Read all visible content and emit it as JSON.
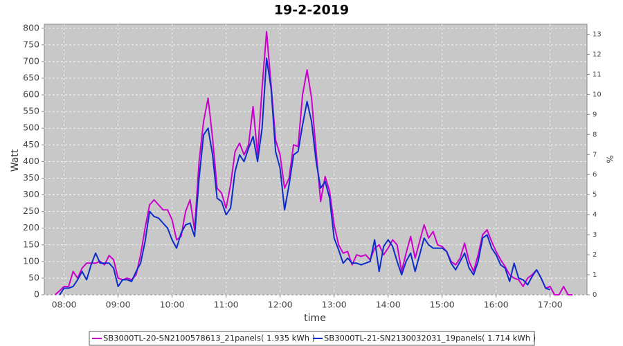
{
  "chart_data": {
    "type": "line",
    "title": "19-2-2019",
    "x_label": "time",
    "y_label": "Watt",
    "y2_label": "%",
    "x": [
      "07:50",
      "07:55",
      "08:00",
      "08:05",
      "08:10",
      "08:15",
      "08:20",
      "08:25",
      "08:30",
      "08:35",
      "08:40",
      "08:45",
      "08:50",
      "08:55",
      "09:00",
      "09:05",
      "09:10",
      "09:15",
      "09:20",
      "09:25",
      "09:30",
      "09:35",
      "09:40",
      "09:45",
      "09:50",
      "09:55",
      "10:00",
      "10:05",
      "10:10",
      "10:15",
      "10:20",
      "10:25",
      "10:30",
      "10:35",
      "10:40",
      "10:45",
      "10:50",
      "10:55",
      "11:00",
      "11:05",
      "11:10",
      "11:15",
      "11:20",
      "11:25",
      "11:30",
      "11:35",
      "11:40",
      "11:45",
      "11:50",
      "11:55",
      "12:00",
      "12:05",
      "12:10",
      "12:15",
      "12:20",
      "12:25",
      "12:30",
      "12:35",
      "12:40",
      "12:45",
      "12:50",
      "12:55",
      "13:00",
      "13:05",
      "13:10",
      "13:15",
      "13:20",
      "13:25",
      "13:30",
      "13:35",
      "13:40",
      "13:45",
      "13:50",
      "13:55",
      "14:00",
      "14:05",
      "14:10",
      "14:15",
      "14:20",
      "14:25",
      "14:30",
      "14:35",
      "14:40",
      "14:45",
      "14:50",
      "14:55",
      "15:00",
      "15:05",
      "15:10",
      "15:15",
      "15:20",
      "15:25",
      "15:30",
      "15:35",
      "15:40",
      "15:45",
      "15:50",
      "15:55",
      "16:00",
      "16:05",
      "16:10",
      "16:15",
      "16:20",
      "16:25",
      "16:30",
      "16:35",
      "16:40",
      "16:45",
      "16:50",
      "16:55",
      "17:00",
      "17:05",
      "17:10",
      "17:15",
      "17:20",
      "17:25"
    ],
    "series": [
      {
        "name": "SB3000TL-20-SN2100578613_21panels( 1.935 kWh )",
        "color": "#cc00cc",
        "values": [
          0,
          12,
          25,
          25,
          70,
          50,
          80,
          95,
          95,
          95,
          100,
          90,
          118,
          105,
          50,
          45,
          50,
          45,
          60,
          120,
          200,
          270,
          285,
          270,
          255,
          255,
          225,
          165,
          175,
          250,
          285,
          195,
          400,
          520,
          590,
          470,
          320,
          305,
          260,
          330,
          430,
          455,
          420,
          450,
          565,
          420,
          620,
          790,
          630,
          465,
          420,
          320,
          350,
          450,
          445,
          600,
          675,
          590,
          430,
          280,
          355,
          310,
          210,
          150,
          125,
          130,
          90,
          120,
          115,
          120,
          105,
          140,
          150,
          120,
          140,
          165,
          150,
          70,
          125,
          175,
          110,
          160,
          210,
          170,
          190,
          150,
          145,
          130,
          100,
          90,
          110,
          155,
          100,
          70,
          120,
          180,
          195,
          160,
          130,
          105,
          85,
          60,
          50,
          45,
          25,
          50,
          60,
          75,
          50,
          20,
          25,
          0,
          0,
          25,
          0,
          0
        ]
      },
      {
        "name": "SB3000TL-21-SN2130032031_19panels( 1.714 kWh )",
        "color": "#0a2ccc",
        "values": [
          null,
          0,
          20,
          20,
          25,
          45,
          70,
          45,
          90,
          125,
          95,
          95,
          95,
          80,
          25,
          45,
          45,
          40,
          70,
          95,
          160,
          250,
          235,
          230,
          215,
          200,
          165,
          140,
          185,
          210,
          215,
          175,
          350,
          480,
          500,
          420,
          290,
          280,
          240,
          260,
          370,
          420,
          400,
          440,
          475,
          400,
          500,
          710,
          620,
          430,
          380,
          255,
          330,
          420,
          430,
          510,
          580,
          520,
          400,
          320,
          340,
          290,
          170,
          135,
          95,
          110,
          95,
          95,
          90,
          95,
          100,
          165,
          70,
          145,
          165,
          145,
          100,
          60,
          100,
          125,
          70,
          120,
          170,
          150,
          140,
          140,
          140,
          130,
          95,
          75,
          100,
          125,
          80,
          60,
          100,
          170,
          180,
          140,
          120,
          90,
          80,
          40,
          95,
          50,
          45,
          30,
          55,
          75,
          50,
          20,
          15,
          null,
          null,
          null,
          null,
          null
        ]
      }
    ],
    "xlim": [
      "07:38",
      "17:41"
    ],
    "xticks": [
      "08:00",
      "09:00",
      "10:00",
      "11:00",
      "12:00",
      "13:00",
      "14:00",
      "15:00",
      "16:00",
      "17:00"
    ],
    "ylim": [
      0,
      812
    ],
    "yticks": [
      0,
      50,
      100,
      150,
      200,
      250,
      300,
      350,
      400,
      450,
      500,
      550,
      600,
      650,
      700,
      750,
      800
    ],
    "y2lim": [
      0,
      13.5
    ],
    "y2ticks": [
      0,
      1,
      2,
      3,
      4,
      5,
      6,
      7,
      8,
      9,
      10,
      11,
      12,
      13
    ],
    "grid": true,
    "legend": "bottom"
  }
}
